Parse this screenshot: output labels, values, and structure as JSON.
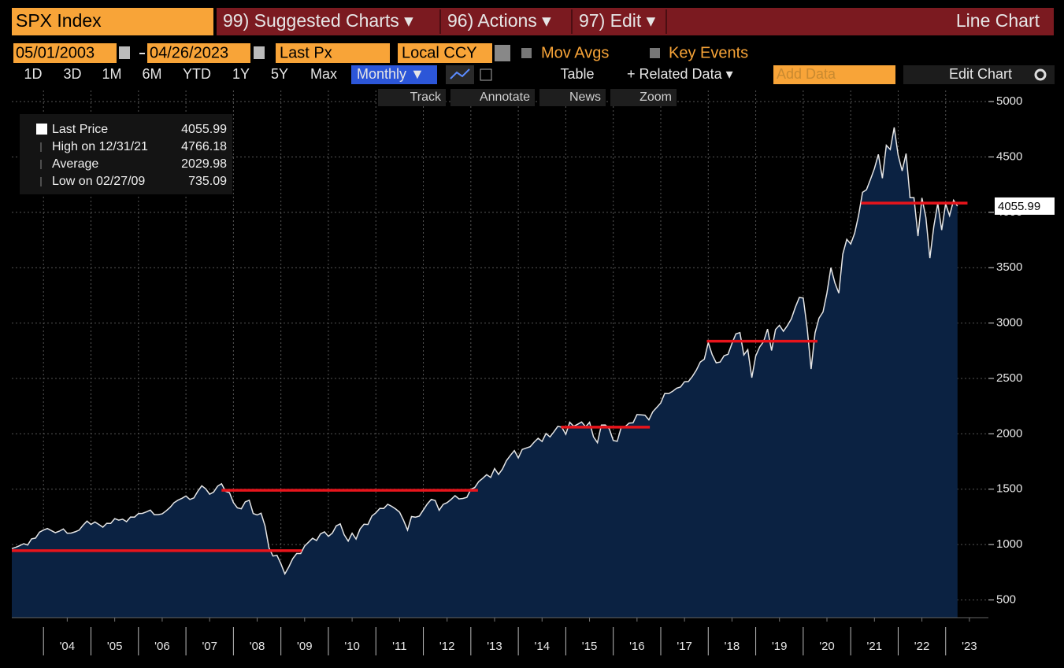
{
  "header": {
    "security": "SPX Index",
    "menus": [
      "99) Suggested Charts ▾",
      "96) Actions ▾",
      "97) Edit ▾"
    ],
    "chart_name": "Line Chart"
  },
  "controls": {
    "start_date": "05/01/2003",
    "end_date": "04/26/2023",
    "field": "Last Px",
    "currency": "Local CCY",
    "toggles": [
      "Mov Avgs",
      "Key Events"
    ]
  },
  "toolbar": {
    "periods": [
      "1D",
      "3D",
      "1M",
      "6M",
      "YTD",
      "1Y",
      "5Y",
      "Max"
    ],
    "frequency": "Monthly ▼",
    "table": "Table",
    "related": "+ Related Data ▾",
    "add_data": "Add Data",
    "edit_chart": "Edit Chart"
  },
  "tools": [
    "Track",
    "Annotate",
    "News",
    "Zoom"
  ],
  "chart_data": {
    "type": "area",
    "legend": [
      {
        "label": "Last Price",
        "value": 4055.99
      },
      {
        "label": "High on 12/31/21",
        "value": 4766.18
      },
      {
        "label": "Average",
        "value": 2029.98
      },
      {
        "label": "Low on 02/27/09",
        "value": 735.09
      }
    ],
    "x": [
      2003.333,
      2003.417,
      2003.5,
      2003.583,
      2003.667,
      2003.75,
      2003.833,
      2003.917,
      2004,
      2004.083,
      2004.167,
      2004.25,
      2004.333,
      2004.417,
      2004.5,
      2004.583,
      2004.667,
      2004.75,
      2004.833,
      2004.917,
      2005,
      2005.083,
      2005.167,
      2005.25,
      2005.333,
      2005.417,
      2005.5,
      2005.583,
      2005.667,
      2005.75,
      2005.833,
      2005.917,
      2006,
      2006.083,
      2006.167,
      2006.25,
      2006.333,
      2006.417,
      2006.5,
      2006.583,
      2006.667,
      2006.75,
      2006.833,
      2006.917,
      2007,
      2007.083,
      2007.167,
      2007.25,
      2007.333,
      2007.417,
      2007.5,
      2007.583,
      2007.667,
      2007.75,
      2007.833,
      2007.917,
      2008,
      2008.083,
      2008.167,
      2008.25,
      2008.333,
      2008.417,
      2008.5,
      2008.583,
      2008.667,
      2008.75,
      2008.833,
      2008.917,
      2009,
      2009.083,
      2009.167,
      2009.25,
      2009.333,
      2009.417,
      2009.5,
      2009.583,
      2009.667,
      2009.75,
      2009.833,
      2009.917,
      2010,
      2010.083,
      2010.167,
      2010.25,
      2010.333,
      2010.417,
      2010.5,
      2010.583,
      2010.667,
      2010.75,
      2010.833,
      2010.917,
      2011,
      2011.083,
      2011.167,
      2011.25,
      2011.333,
      2011.417,
      2011.5,
      2011.583,
      2011.667,
      2011.75,
      2011.833,
      2011.917,
      2012,
      2012.083,
      2012.167,
      2012.25,
      2012.333,
      2012.417,
      2012.5,
      2012.583,
      2012.667,
      2012.75,
      2012.833,
      2012.917,
      2013,
      2013.083,
      2013.167,
      2013.25,
      2013.333,
      2013.417,
      2013.5,
      2013.583,
      2013.667,
      2013.75,
      2013.833,
      2013.917,
      2014,
      2014.083,
      2014.167,
      2014.25,
      2014.333,
      2014.417,
      2014.5,
      2014.583,
      2014.667,
      2014.75,
      2014.833,
      2014.917,
      2015,
      2015.083,
      2015.167,
      2015.25,
      2015.333,
      2015.417,
      2015.5,
      2015.583,
      2015.667,
      2015.75,
      2015.833,
      2015.917,
      2016,
      2016.083,
      2016.167,
      2016.25,
      2016.333,
      2016.417,
      2016.5,
      2016.583,
      2016.667,
      2016.75,
      2016.833,
      2016.917,
      2017,
      2017.083,
      2017.167,
      2017.25,
      2017.333,
      2017.417,
      2017.5,
      2017.583,
      2017.667,
      2017.75,
      2017.833,
      2017.917,
      2018,
      2018.083,
      2018.167,
      2018.25,
      2018.333,
      2018.417,
      2018.5,
      2018.583,
      2018.667,
      2018.75,
      2018.833,
      2018.917,
      2019,
      2019.083,
      2019.167,
      2019.25,
      2019.333,
      2019.417,
      2019.5,
      2019.583,
      2019.667,
      2019.75,
      2019.833,
      2019.917,
      2020,
      2020.083,
      2020.167,
      2020.25,
      2020.333,
      2020.417,
      2020.5,
      2020.583,
      2020.667,
      2020.75,
      2020.833,
      2020.917,
      2021,
      2021.083,
      2021.167,
      2021.25,
      2021.333,
      2021.417,
      2021.5,
      2021.583,
      2021.667,
      2021.75,
      2021.833,
      2021.917,
      2022,
      2022.083,
      2022.167,
      2022.25,
      2022.333,
      2022.417,
      2022.5,
      2022.583,
      2022.667,
      2022.75,
      2022.833,
      2022.917,
      2023,
      2023.083,
      2023.167,
      2023.25
    ],
    "series": [
      {
        "name": "Last Price",
        "color": "#e6e6e6",
        "fill": "#0b2242",
        "values": [
          964,
          975,
          990,
          1008,
          996,
          1051,
          1058,
          1112,
          1131,
          1145,
          1126,
          1107,
          1121,
          1141,
          1102,
          1104,
          1115,
          1130,
          1174,
          1212,
          1181,
          1204,
          1181,
          1157,
          1192,
          1191,
          1234,
          1220,
          1229,
          1207,
          1249,
          1248,
          1280,
          1281,
          1295,
          1311,
          1270,
          1270,
          1277,
          1304,
          1336,
          1378,
          1401,
          1418,
          1438,
          1407,
          1421,
          1482,
          1531,
          1503,
          1455,
          1474,
          1527,
          1549,
          1481,
          1468,
          1379,
          1331,
          1323,
          1386,
          1400,
          1280,
          1267,
          1283,
          1166,
          969,
          896,
          903,
          826,
          735,
          798,
          873,
          919,
          919,
          987,
          1021,
          1057,
          1036,
          1096,
          1115,
          1074,
          1104,
          1169,
          1187,
          1089,
          1031,
          1102,
          1049,
          1141,
          1183,
          1181,
          1258,
          1286,
          1327,
          1326,
          1364,
          1345,
          1321,
          1292,
          1219,
          1131,
          1253,
          1247,
          1258,
          1312,
          1366,
          1408,
          1398,
          1310,
          1362,
          1379,
          1407,
          1441,
          1412,
          1416,
          1426,
          1498,
          1515,
          1569,
          1598,
          1631,
          1606,
          1686,
          1633,
          1682,
          1757,
          1806,
          1848,
          1783,
          1859,
          1872,
          1884,
          1924,
          1960,
          1931,
          2003,
          1972,
          2018,
          2068,
          2059,
          1995,
          2105,
          2068,
          2086,
          2107,
          2063,
          2104,
          1972,
          1920,
          2079,
          2080,
          2044,
          1940,
          1932,
          2060,
          2065,
          2097,
          2099,
          2174,
          2171,
          2168,
          2126,
          2199,
          2239,
          2279,
          2364,
          2363,
          2384,
          2412,
          2423,
          2470,
          2472,
          2519,
          2575,
          2648,
          2674,
          2824,
          2714,
          2641,
          2648,
          2705,
          2718,
          2816,
          2902,
          2914,
          2712,
          2760,
          2507,
          2704,
          2784,
          2834,
          2946,
          2752,
          2942,
          2980,
          2926,
          2977,
          3038,
          3141,
          3231,
          3226,
          2954,
          2585,
          2912,
          3044,
          3100,
          3271,
          3500,
          3363,
          3270,
          3622,
          3756,
          3714,
          3811,
          3973,
          4181,
          4204,
          4298,
          4395,
          4523,
          4308,
          4605,
          4567,
          4766,
          4516,
          4374,
          4530,
          4132,
          4132,
          3785,
          4130,
          3955,
          3586,
          3872,
          4080,
          3840,
          4077,
          3970,
          4109,
          4055.99
        ]
      }
    ],
    "levels": [
      {
        "value": 945,
        "x": [
          2003.333,
          2009.44
        ]
      },
      {
        "value": 1490,
        "x": [
          2007.75,
          2013.15
        ]
      },
      {
        "value": 2060,
        "x": [
          2014.9,
          2016.77
        ]
      },
      {
        "value": 2836,
        "x": [
          2017.97,
          2020.3
        ]
      },
      {
        "value": 4083,
        "x": [
          2021.22,
          2023.46
        ]
      }
    ],
    "level_color": "#e8141b",
    "xlim": [
      2003.333,
      2023.9
    ],
    "xticks": [
      {
        "value": 2004.5,
        "label": "'04"
      },
      {
        "value": 2005.5,
        "label": "'05"
      },
      {
        "value": 2006.5,
        "label": "'06"
      },
      {
        "value": 2007.5,
        "label": "'07"
      },
      {
        "value": 2008.5,
        "label": "'08"
      },
      {
        "value": 2009.5,
        "label": "'09"
      },
      {
        "value": 2010.5,
        "label": "'10"
      },
      {
        "value": 2011.5,
        "label": "'11"
      },
      {
        "value": 2012.5,
        "label": "'12"
      },
      {
        "value": 2013.5,
        "label": "'13"
      },
      {
        "value": 2014.5,
        "label": "'14"
      },
      {
        "value": 2015.5,
        "label": "'15"
      },
      {
        "value": 2016.5,
        "label": "'16"
      },
      {
        "value": 2017.5,
        "label": "'17"
      },
      {
        "value": 2018.5,
        "label": "'18"
      },
      {
        "value": 2019.5,
        "label": "'19"
      },
      {
        "value": 2020.5,
        "label": "'20"
      },
      {
        "value": 2021.5,
        "label": "'21"
      },
      {
        "value": 2022.5,
        "label": "'22"
      },
      {
        "value": 2023.5,
        "label": "'23"
      }
    ],
    "ylim": [
      340,
      5100
    ],
    "yticks": [
      500,
      1000,
      1500,
      2000,
      2500,
      3000,
      3500,
      4000,
      4500,
      5000
    ],
    "grid": true
  }
}
